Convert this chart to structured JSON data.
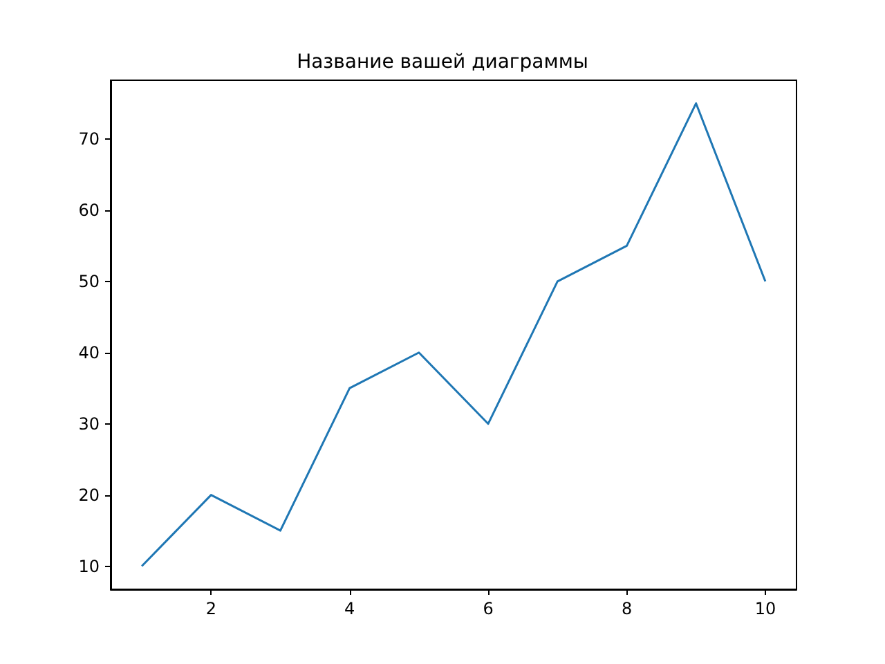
{
  "chart_data": {
    "type": "line",
    "title": "Название вашей диаграммы",
    "x": [
      1,
      2,
      3,
      4,
      5,
      6,
      7,
      8,
      9,
      10
    ],
    "values": [
      10,
      20,
      15,
      35,
      40,
      30,
      50,
      55,
      75,
      50
    ],
    "color": "#1f77b4",
    "xlim": [
      0.55,
      10.45
    ],
    "ylim": [
      6.75,
      78.25
    ],
    "xticks": [
      2,
      4,
      6,
      8,
      10
    ],
    "yticks": [
      10,
      20,
      30,
      40,
      50,
      60,
      70
    ]
  }
}
